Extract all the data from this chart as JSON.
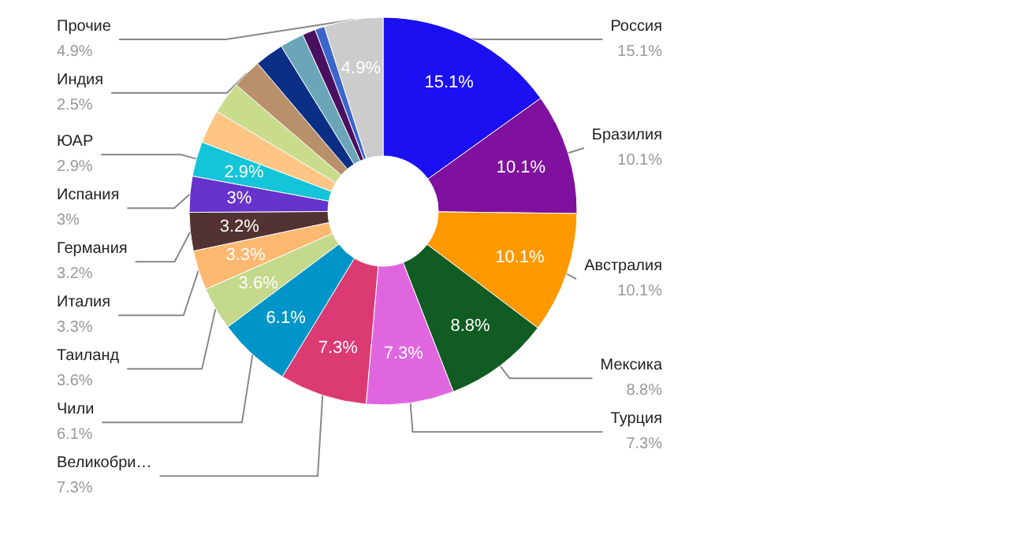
{
  "chart_data": {
    "type": "donut",
    "categories": [
      "Россия",
      "Бразилия",
      "Австралия",
      "Мексика",
      "Турция",
      "Великобри…",
      "Чили",
      "Таиланд",
      "Италия",
      "Германия",
      "Испания",
      "ЮАР",
      null,
      null,
      "Индия",
      null,
      null,
      null,
      null,
      "Прочие"
    ],
    "values": [
      15.1,
      10.1,
      10.1,
      8.8,
      7.3,
      7.3,
      6.1,
      3.6,
      3.3,
      3.2,
      3,
      2.9,
      2.8,
      2.7,
      2.5,
      2.4,
      2.0,
      1.1,
      0.8,
      4.9
    ],
    "colors": [
      "#1a10f2",
      "#80109e",
      "#ff9900",
      "#105c22",
      "#e066e0",
      "#dc3a72",
      "#0095c8",
      "#c4d98c",
      "#ffb870",
      "#533232",
      "#6633cc",
      "#14c4d8",
      "#ffc584",
      "#c8dc8c",
      "#b8906a",
      "#0a2f85",
      "#6aa6b8",
      "#4a1060",
      "#3a66cc",
      "#cccccc"
    ],
    "value_labels": [
      "15.1%",
      "10.1%",
      "10.1%",
      "8.8%",
      "7.3%",
      "7.3%",
      "6.1%",
      "3.6%",
      "3.3%",
      "3.2%",
      "3%",
      "2.9%",
      null,
      null,
      "2.5%",
      null,
      null,
      null,
      null,
      "4.9%"
    ],
    "legend": false
  }
}
